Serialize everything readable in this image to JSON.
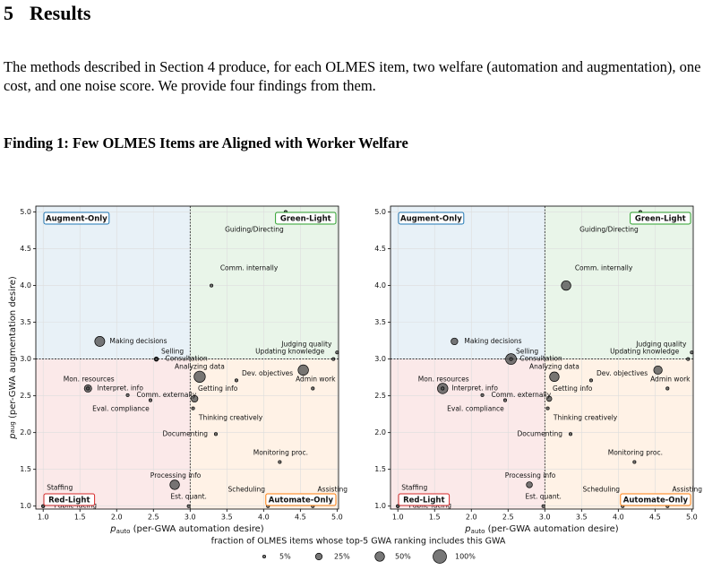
{
  "section": {
    "number": "5",
    "title": "Results",
    "paragraph": "The methods described in Section 4 produce, for each OLMES item, two welfare (automation and augmentation), one cost, and one noise score. We provide four findings from them.",
    "finding": "Finding 1: Few OLMES Items are Aligned with Worker Welfare"
  },
  "chart_data": [
    {
      "type": "scatter",
      "xlabel": {
        "symbol": "p",
        "subscript": "auto",
        "text": " (per-GWA automation desire)"
      },
      "ylabel": {
        "symbol": "p",
        "subscript": "aug",
        "text": " (per-GWA augmentation desire)"
      },
      "xlim": [
        0.9,
        5.02
      ],
      "ylim": [
        0.96,
        5.08
      ],
      "xticks": [
        {
          "value": 1,
          "label": "1.0"
        },
        {
          "value": 1.5,
          "label": "1.5"
        },
        {
          "value": 2,
          "label": "2.0"
        },
        {
          "value": 2.5,
          "label": "2.5"
        },
        {
          "value": 3,
          "label": "3.0"
        },
        {
          "value": 3.5,
          "label": "3.5"
        },
        {
          "value": 4,
          "label": "4.0"
        },
        {
          "value": 4.5,
          "label": "4.5"
        },
        {
          "value": 5,
          "label": "5.0"
        }
      ],
      "yticks": [
        {
          "value": 1,
          "label": "1.0"
        },
        {
          "value": 1.5,
          "label": "1.5"
        },
        {
          "value": 2,
          "label": "2.0"
        },
        {
          "value": 2.5,
          "label": "2.5"
        },
        {
          "value": 3,
          "label": "3.0"
        },
        {
          "value": 3.5,
          "label": "3.5"
        },
        {
          "value": 4,
          "label": "4.0"
        },
        {
          "value": 4.5,
          "label": "4.5"
        },
        {
          "value": 5,
          "label": "5.0"
        }
      ],
      "grid": true,
      "thresholds": {
        "x": 3,
        "y": 3
      },
      "regions": [
        {
          "label": "Augment-Only",
          "color": "#1f77b4",
          "corner": "top-left"
        },
        {
          "label": "Green-Light",
          "color": "#2ca02c",
          "corner": "top-right"
        },
        {
          "label": "Red-Light",
          "color": "#d62728",
          "corner": "bottom-left"
        },
        {
          "label": "Automate-Only",
          "color": "#ff7f0e",
          "corner": "bottom-right"
        }
      ],
      "color": "#555555",
      "labels": [
        "Guiding/Directing",
        "Comm. internally",
        "Making decisions",
        "Selling",
        "Consultation",
        "Updating knowledge",
        "Judging quality",
        "Analyzing data",
        "Dev. objectives",
        "Getting info",
        "Admin work",
        "Mon. resources",
        "Interpret. info",
        "Comm. externally",
        "Eval. compliance",
        "Thinking creatively",
        "Documenting",
        "Monitoring proc.",
        "Processing info",
        "Est. quant.",
        "Staffing",
        "Public-facing",
        "Scheduling",
        "Assisting",
        null
      ],
      "x": [
        4.3,
        3.29,
        1.77,
        2.54,
        2.54,
        4.95,
        5.0,
        3.13,
        4.54,
        3.06,
        4.67,
        1.61,
        1.61,
        2.15,
        2.46,
        3.04,
        3.35,
        4.22,
        2.79,
        2.98,
        1.0,
        1.0,
        4.06,
        4.67,
        3.63
      ],
      "values": [
        5.0,
        4.0,
        3.24,
        3.0,
        3.0,
        3.0,
        3.09,
        2.76,
        2.85,
        2.46,
        2.6,
        2.6,
        2.6,
        2.51,
        2.44,
        2.33,
        1.98,
        1.6,
        1.29,
        1.0,
        1.0,
        1.0,
        1.0,
        1.0,
        2.71
      ],
      "sizes": [
        5,
        5,
        55,
        10,
        5,
        5,
        5,
        70,
        60,
        25,
        5,
        30,
        5,
        5,
        5,
        5,
        5,
        5,
        50,
        5,
        5,
        5,
        5,
        5,
        5
      ]
    },
    {
      "type": "scatter",
      "xlabel": {
        "symbol": "p",
        "subscript": "auto",
        "text": " (per-GWA automation desire)"
      },
      "xlim": [
        0.9,
        5.02
      ],
      "ylim": [
        0.96,
        5.08
      ],
      "xticks": [
        {
          "value": 1,
          "label": "1.0"
        },
        {
          "value": 1.5,
          "label": "1.5"
        },
        {
          "value": 2,
          "label": "2.0"
        },
        {
          "value": 2.5,
          "label": "2.5"
        },
        {
          "value": 3,
          "label": "3.0"
        },
        {
          "value": 3.5,
          "label": "3.5"
        },
        {
          "value": 4,
          "label": "4.0"
        },
        {
          "value": 4.5,
          "label": "4.5"
        },
        {
          "value": 5,
          "label": "5.0"
        }
      ],
      "yticks": [
        {
          "value": 1,
          "label": "1.0"
        },
        {
          "value": 1.5,
          "label": "1.5"
        },
        {
          "value": 2,
          "label": "2.0"
        },
        {
          "value": 2.5,
          "label": "2.5"
        },
        {
          "value": 3,
          "label": "3.0"
        },
        {
          "value": 3.5,
          "label": "3.5"
        },
        {
          "value": 4,
          "label": "4.0"
        },
        {
          "value": 4.5,
          "label": "4.5"
        },
        {
          "value": 5,
          "label": "5.0"
        }
      ],
      "grid": true,
      "thresholds": {
        "x": 3,
        "y": 3
      },
      "regions": [
        {
          "label": "Augment-Only",
          "color": "#1f77b4",
          "corner": "top-left"
        },
        {
          "label": "Green-Light",
          "color": "#2ca02c",
          "corner": "top-right"
        },
        {
          "label": "Red-Light",
          "color": "#d62728",
          "corner": "bottom-left"
        },
        {
          "label": "Automate-Only",
          "color": "#ff7f0e",
          "corner": "bottom-right"
        }
      ],
      "color": "#555555",
      "labels": [
        "Guiding/Directing",
        "Comm. internally",
        "Making decisions",
        "Selling",
        "Consultation",
        "Updating knowledge",
        "Judging quality",
        "Analyzing data",
        "Dev. objectives",
        "Getting info",
        "Admin work",
        "Mon. resources",
        "Interpret. info",
        "Comm. externally",
        "Eval. compliance",
        "Thinking creatively",
        "Documenting",
        "Monitoring proc.",
        "Processing info",
        "Est. quant.",
        "Staffing",
        "Public-facing",
        "Scheduling",
        "Assisting",
        null
      ],
      "x": [
        4.3,
        3.29,
        1.77,
        2.54,
        2.54,
        4.95,
        5.0,
        3.13,
        4.54,
        3.06,
        4.67,
        1.61,
        1.61,
        2.15,
        2.46,
        3.04,
        3.35,
        4.22,
        2.79,
        2.98,
        1.0,
        1.0,
        4.06,
        4.67,
        3.63
      ],
      "values": [
        5.0,
        4.0,
        3.24,
        3.0,
        3.0,
        3.0,
        3.09,
        2.76,
        2.85,
        2.46,
        2.6,
        2.6,
        2.6,
        2.51,
        2.44,
        2.33,
        1.98,
        1.6,
        1.29,
        1.0,
        1.0,
        1.0,
        1.0,
        1.0,
        2.71
      ],
      "sizes": [
        5,
        50,
        25,
        65,
        5,
        5,
        5,
        50,
        40,
        15,
        5,
        60,
        5,
        5,
        5,
        5,
        5,
        5,
        20,
        5,
        5,
        5,
        5,
        5,
        5
      ]
    }
  ],
  "size_legend": {
    "title": "fraction of OLMES items whose top-5 GWA ranking includes this GWA",
    "entries": [
      {
        "value": 5,
        "label": "5%"
      },
      {
        "value": 25,
        "label": "25%"
      },
      {
        "value": 50,
        "label": "50%"
      },
      {
        "value": 100,
        "label": "100%"
      }
    ]
  }
}
